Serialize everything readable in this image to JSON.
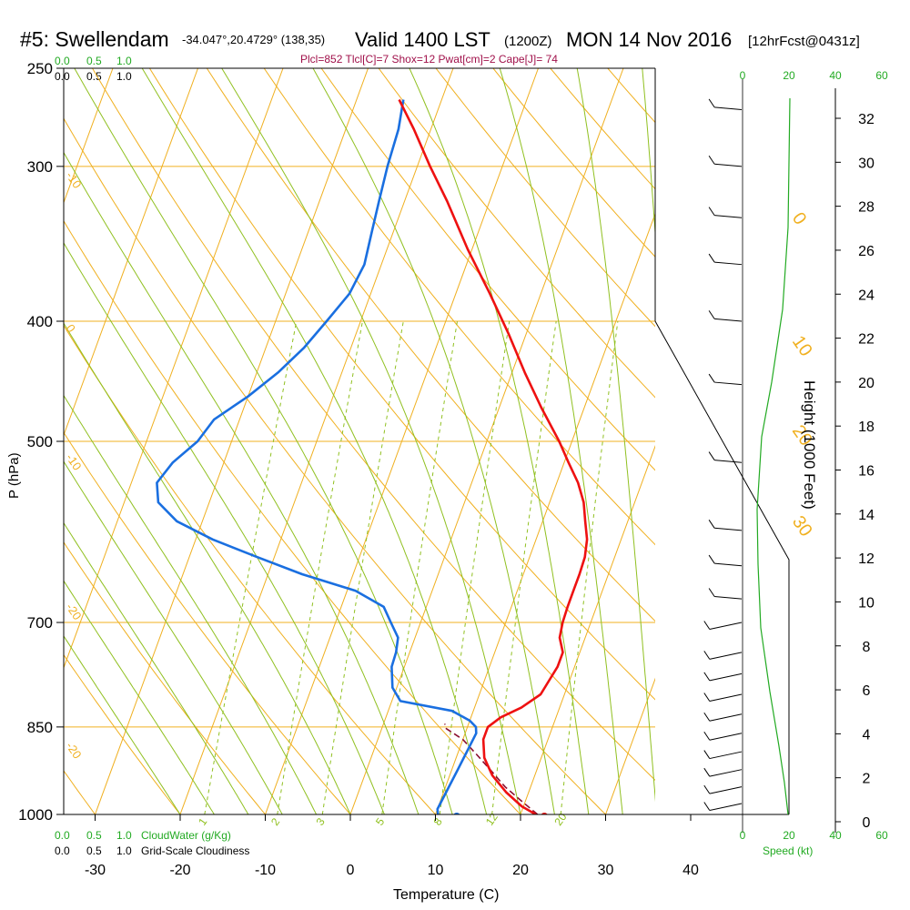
{
  "header": {
    "station": "#5: Swellendam",
    "coords": "-34.047°,20.4729° (138,35)",
    "valid": "Valid 1400 LST",
    "zulu": "(1200Z)",
    "date": "MON 14 Nov 2016",
    "fcst": "[12hrFcst@0431z]",
    "indices": "Plcl=852 Tlcl[C]=7 Shox=12 Pwat[cm]=2 Cape[J]= 74"
  },
  "scales": {
    "cloud_water_top": [
      "0.0",
      "0.5",
      "1.0"
    ],
    "cloudiness_top": [
      "0.0",
      "0.5",
      "1.0"
    ],
    "cloud_water_bottom": [
      "0.0",
      "0.5",
      "1.0"
    ],
    "cloudiness_bottom": [
      "0.0",
      "0.5",
      "1.0"
    ],
    "cloud_water_label": "CloudWater (g/Kg)",
    "cloudiness_label": "Grid-Scale Cloudiness",
    "speed_ticks": [
      "0",
      "20",
      "40",
      "60"
    ],
    "speed_label": "Speed (kt)"
  },
  "colors": {
    "temperature": "#ee1111",
    "dewpoint": "#1a6fe0",
    "parcel": "#8b1030",
    "isotherm": "#f0b020",
    "moist_adiabat": "#90c020",
    "mixing_ratio": "#90c020",
    "wind_speed": "#22aa22",
    "title_indices": "#a0104a"
  },
  "chart_data": {
    "type": "line",
    "subtype": "skew-T log-p sounding",
    "xlabel": "Temperature (C)",
    "ylabel": "P (hPa)",
    "y2label": "Height (1000 Feet)",
    "x_ticks": [
      "-30",
      "-20",
      "-10",
      "0",
      "10",
      "20",
      "30",
      "40"
    ],
    "p_ticks": [
      "250",
      "300",
      "400",
      "500",
      "700",
      "850",
      "1000"
    ],
    "height_ticks": [
      "0",
      "2",
      "4",
      "6",
      "8",
      "10",
      "12",
      "14",
      "16",
      "18",
      "20",
      "22",
      "24",
      "26",
      "28",
      "30",
      "32"
    ],
    "xlim": [
      -35,
      45
    ],
    "plim": [
      1000,
      250
    ],
    "log_scale_y": true,
    "isotherm_labels": [
      {
        "text": "-10",
        "T": -35,
        "p": 305
      },
      {
        "text": "0",
        "T": -35,
        "p": 405
      },
      {
        "text": "-10",
        "T": -35,
        "p": 515
      },
      {
        "text": "-20",
        "T": -35,
        "p": 680
      },
      {
        "text": "-20",
        "T": -35,
        "p": 880
      },
      {
        "text": "0",
        "T": 38,
        "p": 330
      },
      {
        "text": "10",
        "T": 40,
        "p": 415
      },
      {
        "text": "20",
        "T": 46,
        "p": 490
      },
      {
        "text": "30",
        "T": 51,
        "p": 580
      }
    ],
    "mixing_ratio_labels": [
      "1",
      "2",
      "3",
      "5",
      "8",
      "12",
      "20"
    ],
    "temperature": {
      "name": "Temperature",
      "p": [
        1000,
        985,
        960,
        930,
        900,
        870,
        850,
        835,
        820,
        800,
        780,
        760,
        740,
        720,
        700,
        680,
        660,
        640,
        620,
        600,
        580,
        560,
        540,
        520,
        500,
        470,
        440,
        410,
        380,
        350,
        320,
        300,
        280,
        265
      ],
      "T": [
        21.8,
        19.8,
        17.4,
        15.0,
        13.3,
        12.4,
        12.4,
        13.5,
        15.5,
        17.2,
        17.6,
        18.0,
        18.0,
        17.0,
        16.7,
        16.6,
        16.6,
        16.6,
        16.5,
        16.0,
        15.0,
        14.0,
        12.5,
        10.5,
        8.5,
        5.0,
        1.5,
        -2.0,
        -6.0,
        -10.5,
        -15.0,
        -18.5,
        -22.0,
        -25.0
      ]
    },
    "dewpoint": {
      "name": "Dewpoint",
      "p": [
        1000,
        990,
        960,
        920,
        880,
        860,
        850,
        840,
        825,
        810,
        790,
        760,
        740,
        720,
        700,
        680,
        660,
        640,
        620,
        600,
        580,
        560,
        540,
        520,
        500,
        480,
        460,
        440,
        420,
        400,
        380,
        360,
        340,
        320,
        300,
        280,
        265
      ],
      "T": [
        10.3,
        10.0,
        10.3,
        10.7,
        11.1,
        11.3,
        11.0,
        10.0,
        7.5,
        1.0,
        -0.5,
        -1.5,
        -1.6,
        -2.0,
        -3.5,
        -5.0,
        -9.0,
        -16.0,
        -22.0,
        -28.0,
        -33.0,
        -36.0,
        -37.0,
        -36.0,
        -34.0,
        -33.0,
        -30.0,
        -27.5,
        -25.5,
        -24.0,
        -22.5,
        -22.0,
        -22.5,
        -23.0,
        -23.5,
        -23.8,
        -24.5
      ]
    },
    "parcel": {
      "name": "Parcel",
      "p": [
        1000,
        975,
        950,
        920,
        895,
        870,
        852,
        845
      ],
      "T": [
        22.0,
        19.5,
        17.0,
        14.5,
        12.3,
        10.0,
        7.5,
        7.2
      ]
    },
    "surface_temp_marker": 22.8,
    "surface_dew_marker": 12.5,
    "wind_barbs_p": [
      270,
      300,
      330,
      360,
      400,
      450,
      520,
      590,
      630,
      670,
      700,
      740,
      770,
      800,
      830,
      860,
      890,
      920,
      950,
      980
    ]
  }
}
